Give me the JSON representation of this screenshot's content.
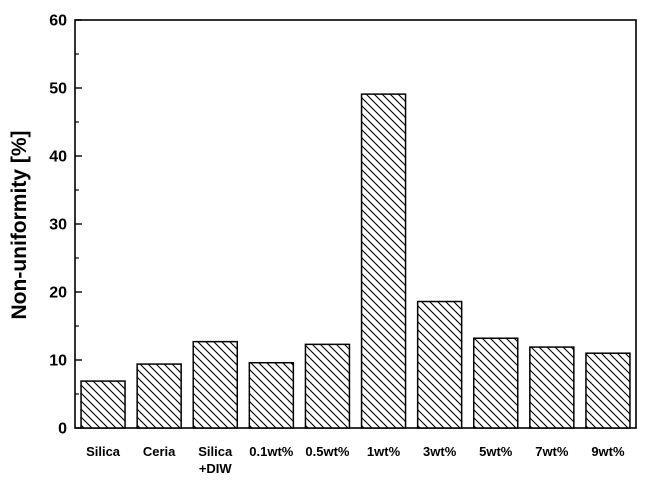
{
  "chart_data": {
    "type": "bar",
    "title": "",
    "xlabel": "",
    "ylabel": "Non-uniformity [%]",
    "ylim": [
      0,
      60
    ],
    "yticks": [
      0,
      10,
      20,
      30,
      40,
      50,
      60
    ],
    "grid": false,
    "legend": "none",
    "categories": [
      [
        "Silica"
      ],
      [
        "Ceria"
      ],
      [
        "Silica",
        "+DIW"
      ],
      [
        "0.1wt%"
      ],
      [
        "0.5wt%"
      ],
      [
        "1wt%"
      ],
      [
        "3wt%"
      ],
      [
        "5wt%"
      ],
      [
        "7wt%"
      ],
      [
        "9wt%"
      ]
    ],
    "values": [
      6.9,
      9.4,
      12.7,
      9.6,
      12.3,
      49.1,
      18.6,
      13.2,
      11.9,
      11.0
    ],
    "bar_fill": "hatched",
    "colors": {
      "stroke": "#000000",
      "background": "#ffffff"
    }
  }
}
